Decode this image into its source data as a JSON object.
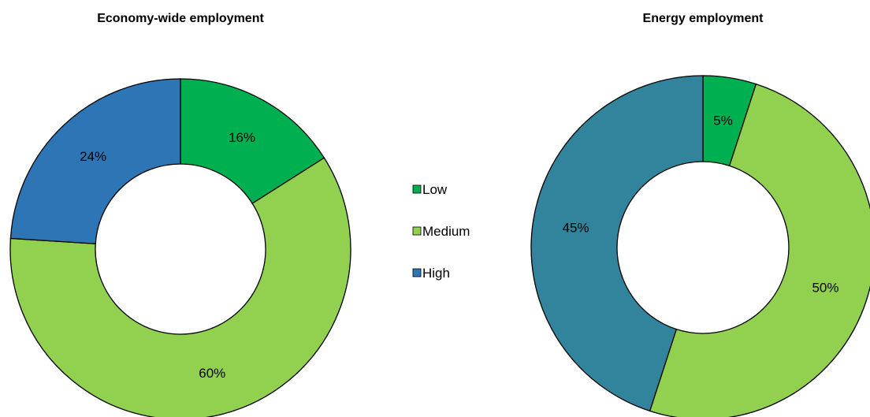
{
  "legend": {
    "items": [
      {
        "label": "Low",
        "color": "#00b050"
      },
      {
        "label": "Medium",
        "color": "#92d050"
      },
      {
        "label": "High",
        "color": "#2e75b6"
      }
    ]
  },
  "chart_data": [
    {
      "type": "pie",
      "title": "Economy-wide employment",
      "categories": [
        "Low",
        "Medium",
        "High"
      ],
      "values": [
        16,
        60,
        24
      ],
      "labels": [
        "16%",
        "60%",
        "24%"
      ],
      "colors": [
        "#00b050",
        "#92d050",
        "#2e75b6"
      ],
      "unit": "%",
      "legend_position": "center"
    },
    {
      "type": "pie",
      "title": "Energy employment",
      "categories": [
        "Low",
        "Medium",
        "High"
      ],
      "values": [
        5,
        50,
        45
      ],
      "labels": [
        "5%",
        "50%",
        "45%"
      ],
      "colors": [
        "#00b050",
        "#92d050",
        "#31849b"
      ],
      "unit": "%",
      "legend_position": "center"
    }
  ]
}
